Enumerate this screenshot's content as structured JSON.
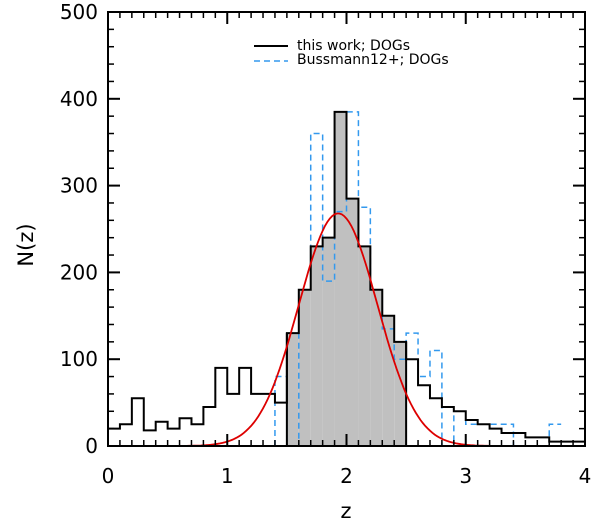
{
  "chart_data": {
    "type": "histogram",
    "xlabel": "z",
    "ylabel": "N(z)",
    "xlim": [
      0,
      4
    ],
    "ylim": [
      0,
      500
    ],
    "x_ticks": [
      0,
      1,
      2,
      3,
      4
    ],
    "y_ticks": [
      0,
      100,
      200,
      300,
      400,
      500
    ],
    "grid": false,
    "legend_position": "top-center",
    "colors": {
      "this_work": "#000000",
      "bussmann": "#3399ee",
      "fit": "#dd0000",
      "shade": "#c0c0c0"
    },
    "bin_width": 0.1,
    "series": [
      {
        "name": "this work; DOGs",
        "style": "solid-step",
        "bin_edges": [
          0.0,
          0.1,
          0.2,
          0.3,
          0.4,
          0.5,
          0.6,
          0.7,
          0.8,
          0.9,
          1.0,
          1.1,
          1.2,
          1.3,
          1.4,
          1.5,
          1.6,
          1.7,
          1.8,
          1.9,
          2.0,
          2.1,
          2.2,
          2.3,
          2.4,
          2.5,
          2.6,
          2.7,
          2.8,
          2.9,
          3.0,
          3.1,
          3.2,
          3.3,
          3.4,
          3.5,
          3.6,
          3.7,
          3.8,
          3.9,
          4.0
        ],
        "values": [
          20,
          25,
          55,
          18,
          28,
          20,
          32,
          25,
          45,
          90,
          60,
          90,
          60,
          60,
          50,
          130,
          180,
          230,
          240,
          385,
          285,
          230,
          180,
          150,
          120,
          100,
          70,
          55,
          45,
          40,
          30,
          25,
          20,
          15,
          15,
          10,
          10,
          5,
          5,
          5
        ]
      },
      {
        "name": "Bussmann12+; DOGs",
        "style": "dashed-step",
        "bin_edges": [
          1.4,
          1.5,
          1.6,
          1.7,
          1.8,
          1.9,
          2.0,
          2.1,
          2.2,
          2.3,
          2.4,
          2.5,
          2.6,
          2.7,
          2.8,
          2.9,
          3.0,
          3.1,
          3.2,
          3.3,
          3.4,
          3.5,
          3.6,
          3.7,
          3.8
        ],
        "values": [
          80,
          0,
          180,
          360,
          190,
          270,
          385,
          275,
          180,
          135,
          100,
          130,
          80,
          110,
          0,
          40,
          25,
          25,
          25,
          25,
          0,
          0,
          0,
          25
        ]
      }
    ],
    "shaded_region": {
      "x_range": [
        1.5,
        2.5
      ],
      "values": [
        130,
        180,
        230,
        240,
        385,
        285,
        230,
        180,
        150,
        120
      ]
    },
    "fit_curve": {
      "type": "gaussian",
      "mean": 1.93,
      "sigma": 0.33,
      "amplitude": 268
    }
  }
}
